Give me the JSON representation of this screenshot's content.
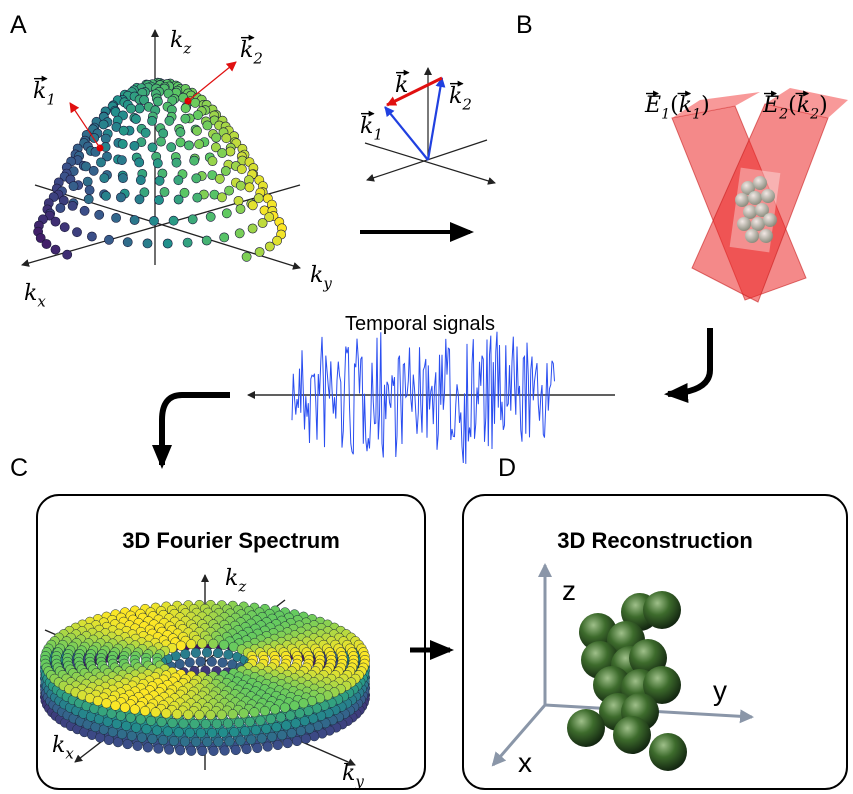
{
  "panel_labels": [
    "A",
    "B",
    "C",
    "D"
  ],
  "panel_a": {
    "axis_z": {
      "base": "k",
      "sub": "z"
    },
    "axis_x": {
      "base": "k",
      "sub": "x"
    },
    "axis_y": {
      "base": "k",
      "sub": "y"
    },
    "vector_1": {
      "base": "k",
      "sub": "1"
    },
    "vector_2": {
      "base": "k",
      "sub": "2"
    }
  },
  "inset": {
    "difference": {
      "base": "k"
    },
    "vector_1": {
      "base": "k",
      "sub": "1"
    },
    "vector_2": {
      "base": "k",
      "sub": "2"
    }
  },
  "panel_b": {
    "field_1": {
      "base": "E",
      "sub": "1",
      "open": "(",
      "arg_base": "k",
      "arg_sub": "1",
      "close": ")"
    },
    "field_2": {
      "base": "E",
      "sub": "2",
      "open": "(",
      "arg_base": "k",
      "arg_sub": "2",
      "close": ")"
    }
  },
  "signal_label": "Temporal signals",
  "panel_c": {
    "title": "3D Fourier Spectrum",
    "axis_z": {
      "base": "k",
      "sub": "z"
    },
    "axis_x": {
      "base": "k",
      "sub": "x"
    },
    "axis_y": {
      "base": "k",
      "sub": "y"
    }
  },
  "panel_d": {
    "title": "3D Reconstruction",
    "axis_z": "z",
    "axis_y": "y",
    "axis_x": "x"
  }
}
